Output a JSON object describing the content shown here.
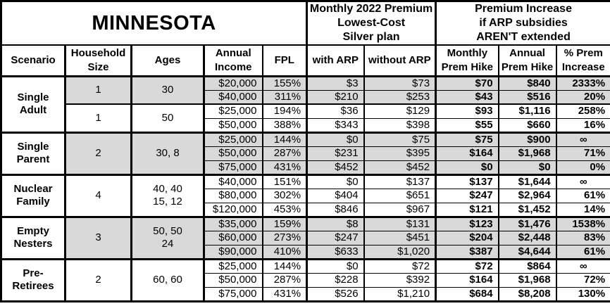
{
  "colors": {
    "shaded_row_bg": "#d9d9d9",
    "border": "#000000",
    "background": "#ffffff",
    "text": "#000000"
  },
  "chart_data": {
    "type": "table",
    "title": "MINNESOTA",
    "column_groups": [
      {
        "label": "Monthly 2022 Premium\nLowest-Cost\nSilver plan",
        "span": 2
      },
      {
        "label": "Premium Increase\nif ARP subsidies\nAREN'T extended",
        "span": 3
      }
    ],
    "columns": [
      "Scenario",
      "Household\nSize",
      "Ages",
      "Annual\nIncome",
      "FPL",
      "with ARP",
      "without ARP",
      "Monthly\nPrem Hike",
      "Annual\nPrem Hike",
      "% Prem\nIncrease"
    ],
    "row_fields": [
      "annual_income",
      "fpl",
      "with_arp",
      "without_arp",
      "monthly_prem_hike",
      "annual_prem_hike",
      "pct_prem_increase"
    ],
    "groups": [
      {
        "scenario": "Single\nAdult",
        "subgroups": [
          {
            "household_size": "1",
            "ages": "30",
            "shaded": true,
            "rows": [
              [
                "$20,000",
                "155%",
                "$3",
                "$73",
                "$70",
                "$840",
                "2333%"
              ],
              [
                "$40,000",
                "311%",
                "$210",
                "$253",
                "$43",
                "$516",
                "20%"
              ]
            ]
          },
          {
            "household_size": "1",
            "ages": "50",
            "shaded": false,
            "rows": [
              [
                "$25,000",
                "194%",
                "$36",
                "$129",
                "$93",
                "$1,116",
                "258%"
              ],
              [
                "$50,000",
                "388%",
                "$343",
                "$398",
                "$55",
                "$660",
                "16%"
              ]
            ]
          }
        ]
      },
      {
        "scenario": "Single\nParent",
        "subgroups": [
          {
            "household_size": "2",
            "ages": "30, 8",
            "shaded": true,
            "rows": [
              [
                "$25,000",
                "144%",
                "$0",
                "$75",
                "$75",
                "$900",
                "∞"
              ],
              [
                "$50,000",
                "287%",
                "$231",
                "$395",
                "$164",
                "$1,968",
                "71%"
              ],
              [
                "$75,000",
                "431%",
                "$452",
                "$452",
                "$0",
                "$0",
                "0%"
              ]
            ]
          }
        ]
      },
      {
        "scenario": "Nuclear\nFamily",
        "subgroups": [
          {
            "household_size": "4",
            "ages": "40, 40\n15, 12",
            "shaded": false,
            "rows": [
              [
                "$40,000",
                "151%",
                "$0",
                "$137",
                "$137",
                "$1,644",
                "∞"
              ],
              [
                "$80,000",
                "302%",
                "$404",
                "$651",
                "$247",
                "$2,964",
                "61%"
              ],
              [
                "$120,000",
                "453%",
                "$846",
                "$967",
                "$121",
                "$1,452",
                "14%"
              ]
            ]
          }
        ]
      },
      {
        "scenario": "Empty\nNesters",
        "subgroups": [
          {
            "household_size": "3",
            "ages": "50, 50\n24",
            "shaded": true,
            "rows": [
              [
                "$35,000",
                "159%",
                "$8",
                "$131",
                "$123",
                "$1,476",
                "1538%"
              ],
              [
                "$60,000",
                "273%",
                "$247",
                "$451",
                "$204",
                "$2,448",
                "83%"
              ],
              [
                "$90,000",
                "410%",
                "$633",
                "$1,020",
                "$387",
                "$4,644",
                "61%"
              ]
            ]
          }
        ]
      },
      {
        "scenario": "Pre-\nRetirees",
        "subgroups": [
          {
            "household_size": "2",
            "ages": "60, 60",
            "shaded": false,
            "rows": [
              [
                "$25,000",
                "144%",
                "$0",
                "$72",
                "$72",
                "$864",
                "∞"
              ],
              [
                "$50,000",
                "287%",
                "$228",
                "$392",
                "$164",
                "$1,968",
                "72%"
              ],
              [
                "$75,000",
                "431%",
                "$526",
                "$1,210",
                "$684",
                "$8,208",
                "130%"
              ]
            ]
          }
        ]
      }
    ]
  }
}
